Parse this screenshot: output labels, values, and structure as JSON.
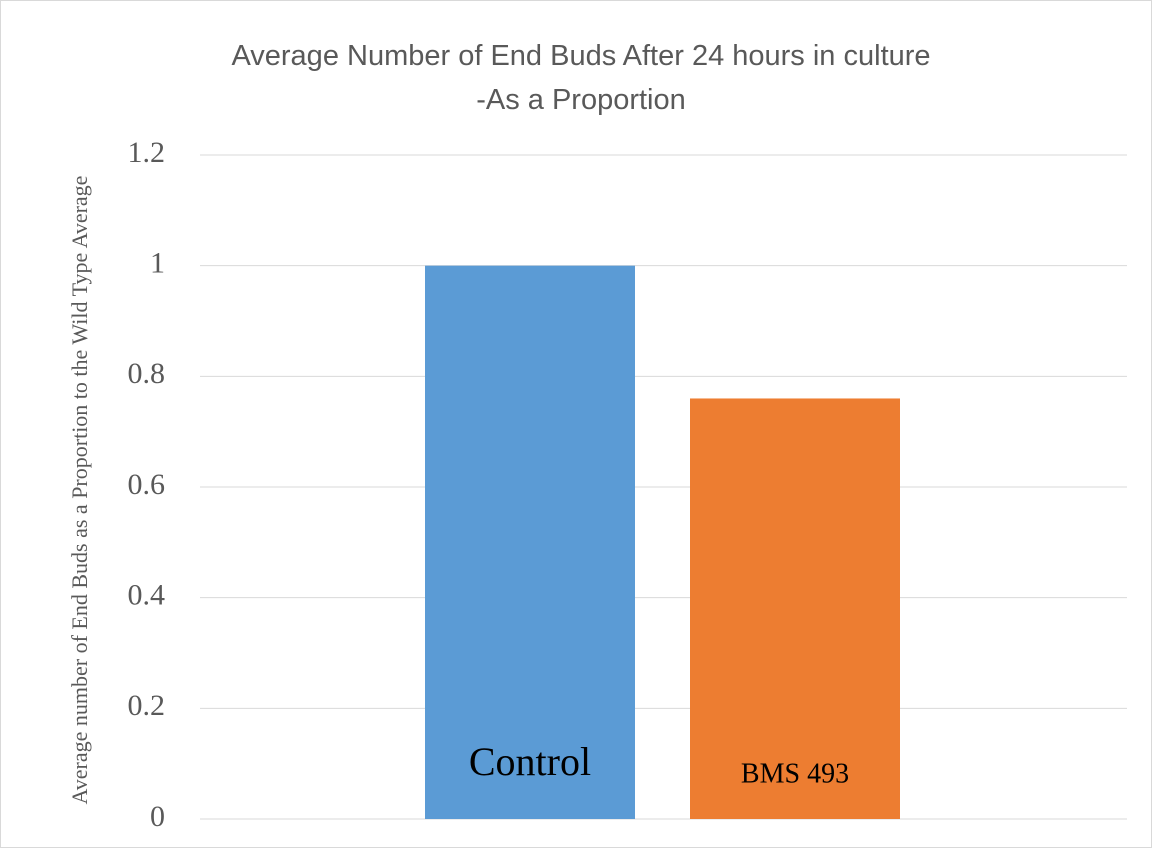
{
  "chart_data": {
    "type": "bar",
    "title": "Average Number of End Buds After 24 hours in culture -As a Proportion",
    "y_label": "Average number of End Buds as a Proportion to the Wild Type Average",
    "categories": [
      "Control",
      "BMS 493"
    ],
    "values": [
      1,
      0.76
    ],
    "colors": [
      "#5b9bd5",
      "#ed7d31"
    ],
    "ylim": [
      0,
      1.2
    ],
    "yticks": [
      0,
      0.2,
      0.4,
      0.6,
      0.8,
      1,
      1.2
    ],
    "grid": true
  }
}
